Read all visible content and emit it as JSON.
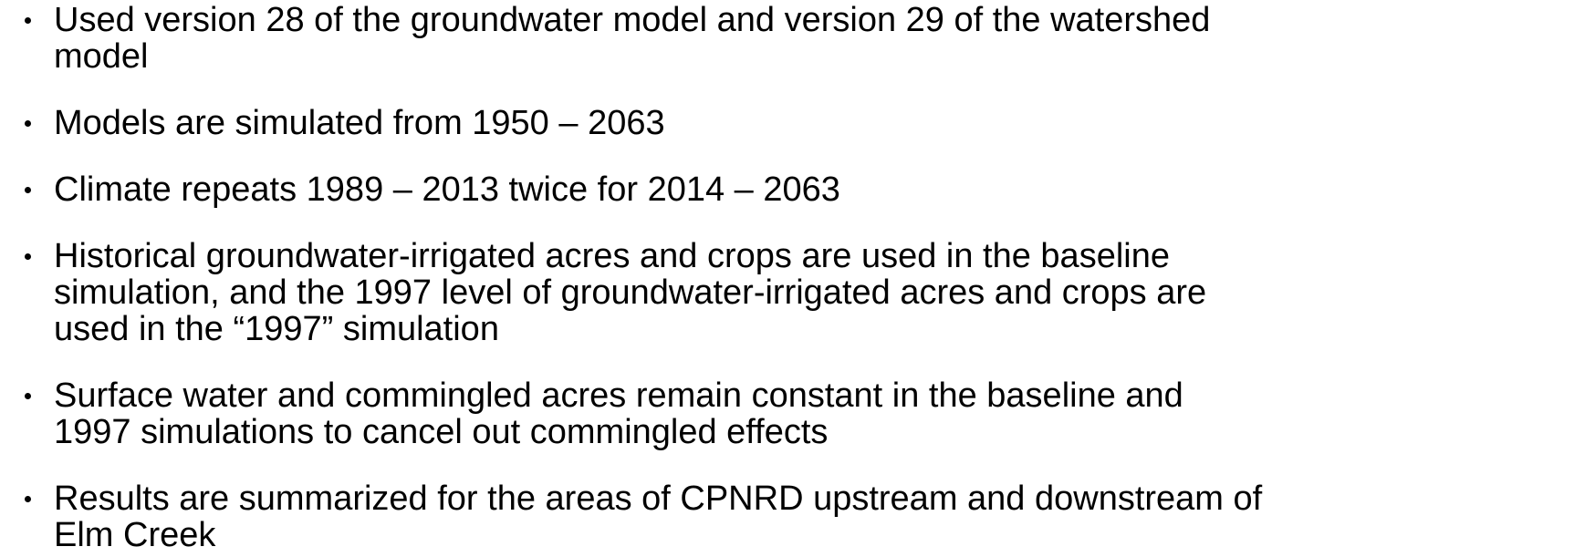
{
  "items": [
    [
      "Used version 28 of the groundwater model and version 29 of the watershed",
      "model"
    ],
    [
      "Models are simulated from 1950 – 2063"
    ],
    [
      "Climate repeats 1989 – 2013 twice for 2014 – 2063"
    ],
    [
      "Historical groundwater-irrigated acres and crops are used in the baseline",
      "simulation, and the 1997 level of groundwater-irrigated acres and crops are",
      "used in the “1997” simulation"
    ],
    [
      "Surface water and commingled acres remain constant in the baseline and",
      "1997 simulations to cancel out commingled effects"
    ],
    [
      "Results are summarized for the areas of CPNRD upstream and downstream of",
      "Elm Creek"
    ]
  ]
}
